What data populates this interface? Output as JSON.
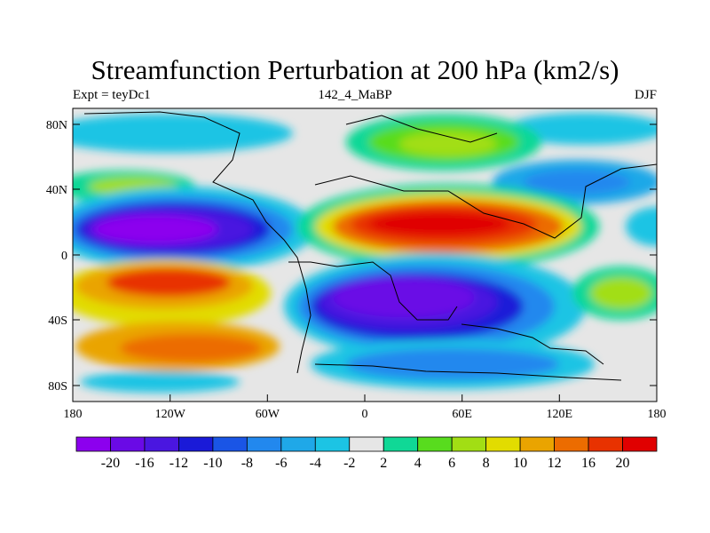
{
  "title": "Streamfunction Perturbation at 200 hPa (km2/s)",
  "subtitle_left": "Expt = teyDc1",
  "subtitle_center": "142_4_MaBP",
  "subtitle_right": "DJF",
  "axes": {
    "x_ticks": [
      "180",
      "120W",
      "60W",
      "0",
      "60E",
      "120E",
      "180"
    ],
    "y_ticks": [
      "80N",
      "40N",
      "0",
      "40S",
      "80S"
    ]
  },
  "colorbar": {
    "labels": [
      "-20",
      "-16",
      "-12",
      "-10",
      "-8",
      "-6",
      "-4",
      "-2",
      "2",
      "4",
      "6",
      "8",
      "10",
      "12",
      "16",
      "20"
    ],
    "colors": [
      "#8c00ee",
      "#6a0ae6",
      "#4a16e0",
      "#1a1ad8",
      "#1a55e6",
      "#2288ee",
      "#1fa8e8",
      "#1cc4e4",
      "#e6e6e6",
      "#10d896",
      "#58dc1e",
      "#a2de14",
      "#e2dc00",
      "#eaa400",
      "#ec6c00",
      "#e83200",
      "#e00000"
    ]
  }
}
